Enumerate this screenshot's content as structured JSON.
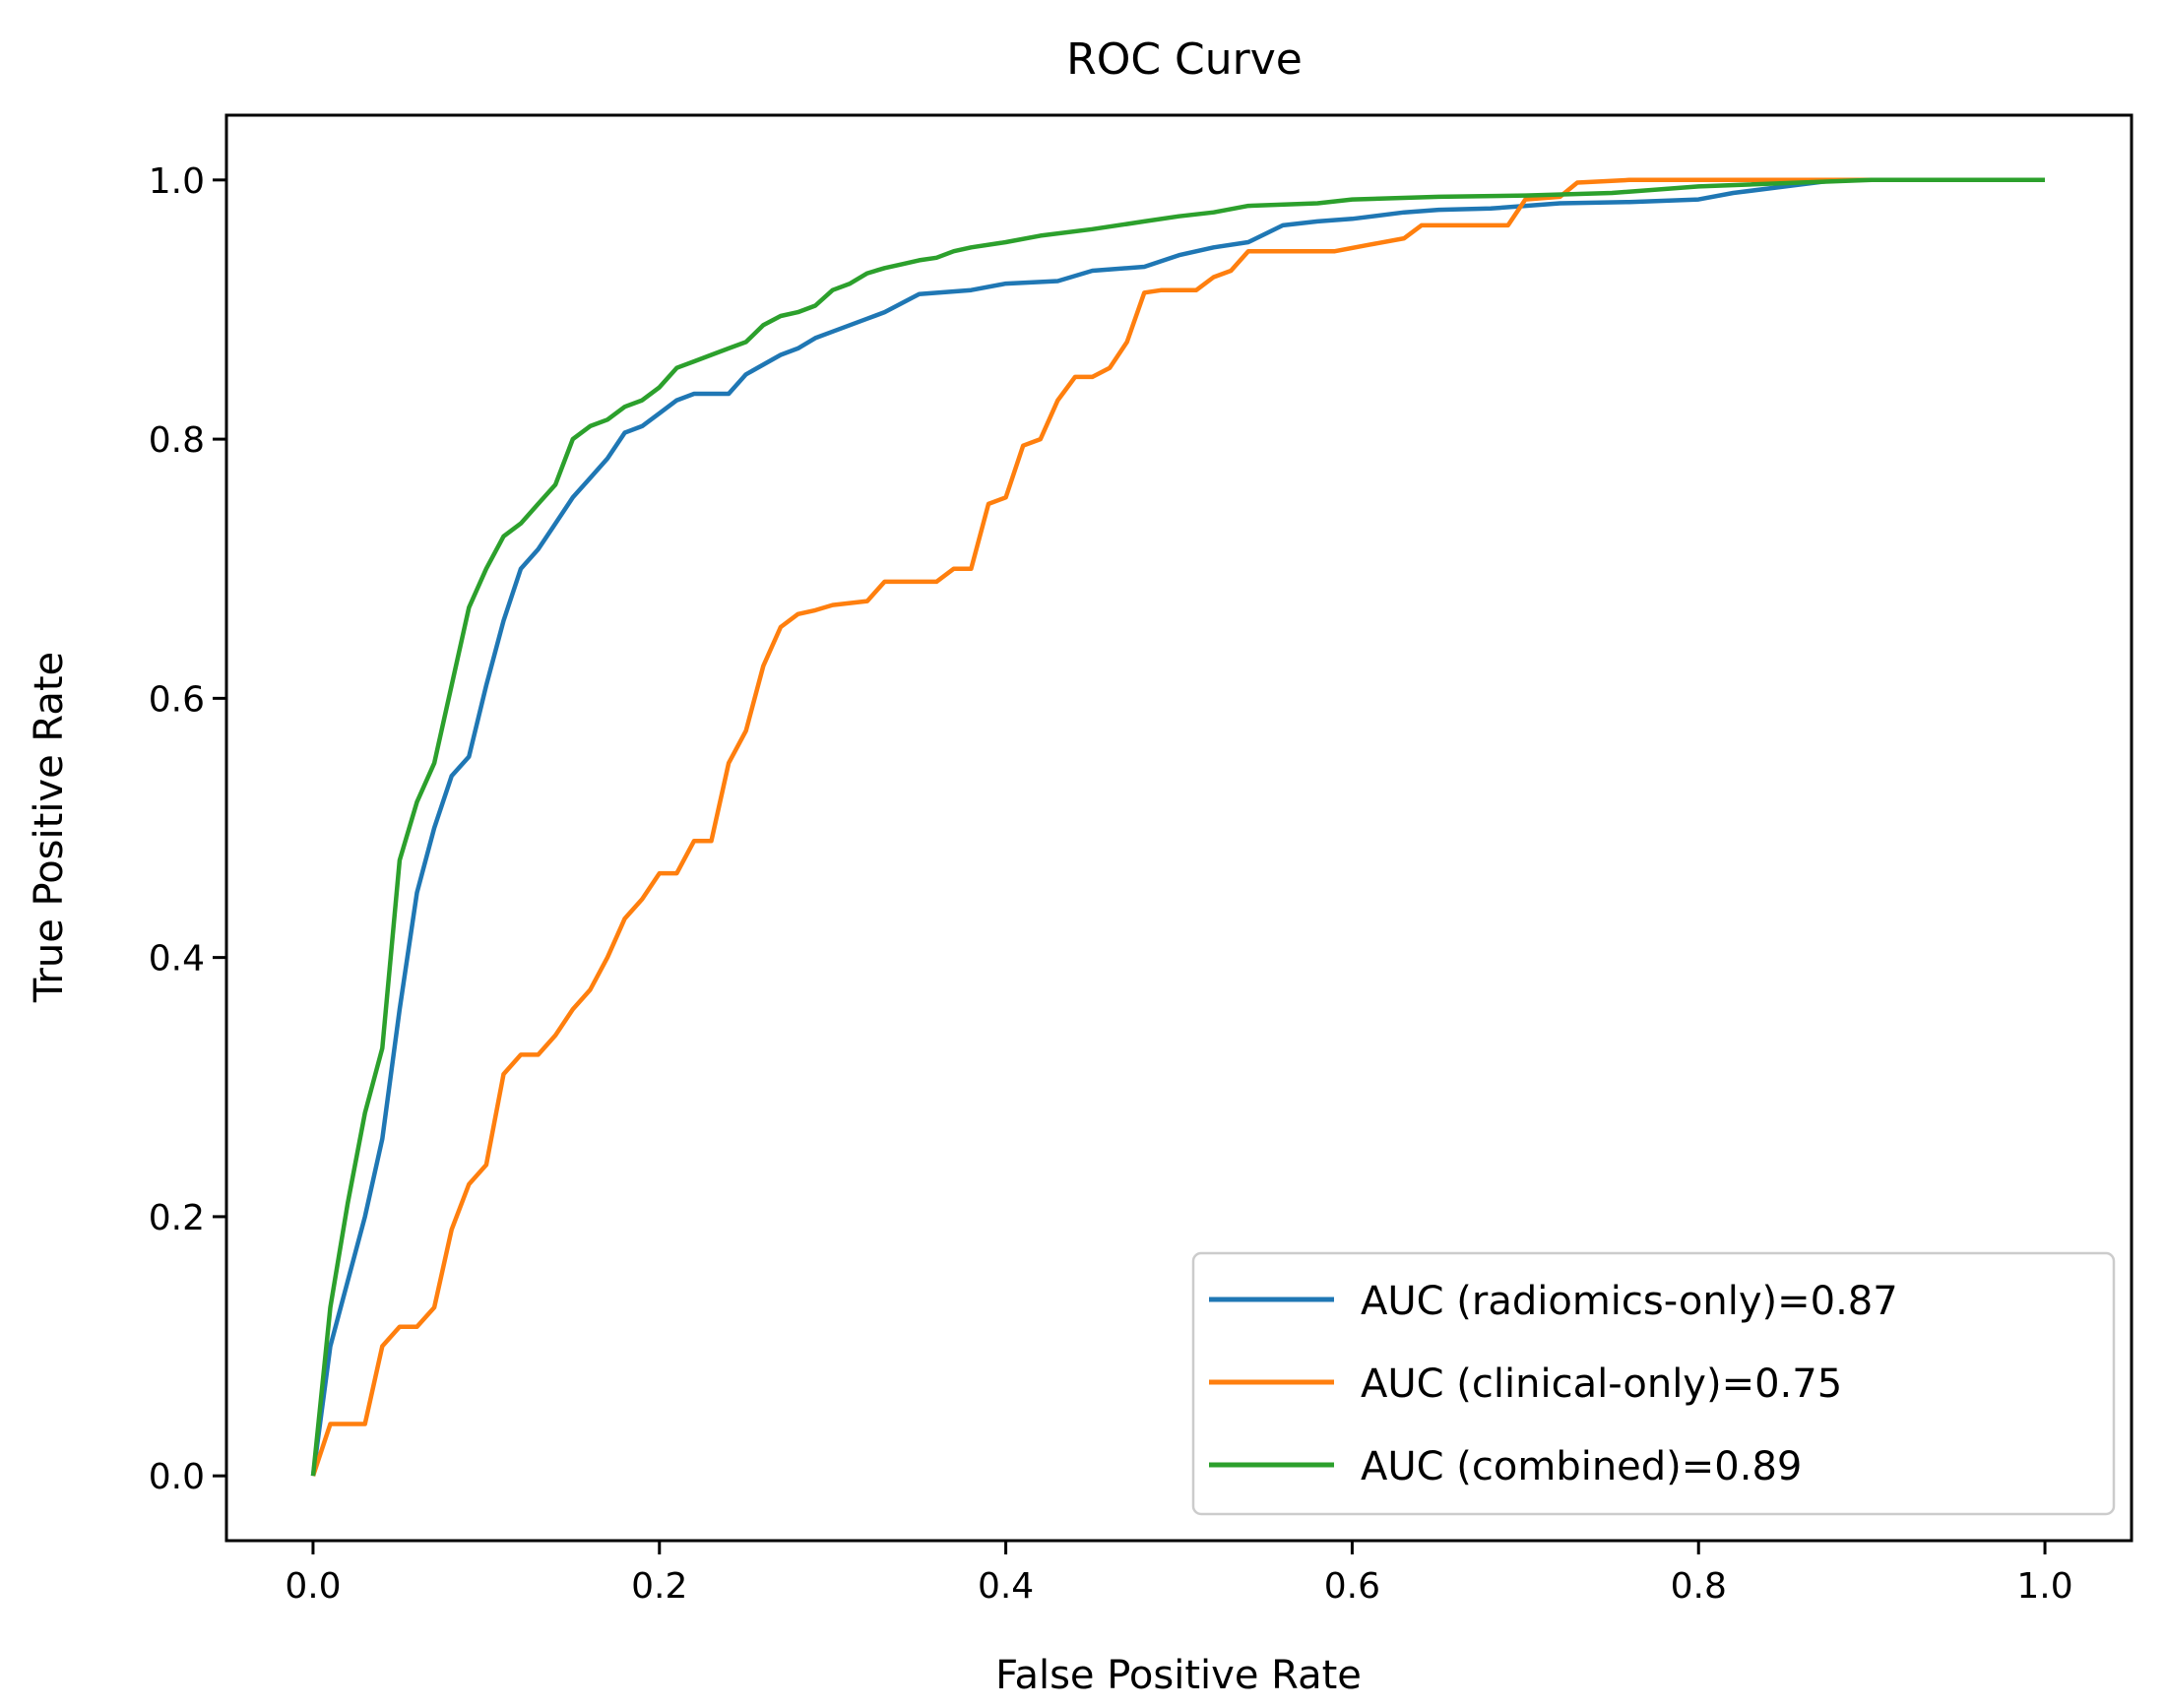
{
  "chart_data": {
    "type": "line",
    "title": "ROC Curve",
    "xlabel": "False Positive Rate",
    "ylabel": "True Positive Rate",
    "xlim": [
      -0.05,
      1.05
    ],
    "ylim": [
      -0.05,
      1.05
    ],
    "xticks": [
      0.0,
      0.2,
      0.4,
      0.6,
      0.8,
      1.0
    ],
    "yticks": [
      0.0,
      0.2,
      0.4,
      0.6,
      0.8,
      1.0
    ],
    "xtick_labels": [
      "0.0",
      "0.2",
      "0.4",
      "0.6",
      "0.8",
      "1.0"
    ],
    "ytick_labels": [
      "0.0",
      "0.2",
      "0.4",
      "0.6",
      "0.8",
      "1.0"
    ],
    "grid": false,
    "legend_position": "lower-right",
    "series": [
      {
        "name": "AUC (radiomics-only)=0.87",
        "color": "#1f77b4",
        "points": [
          [
            0,
            0
          ],
          [
            0.01,
            0.1
          ],
          [
            0.02,
            0.15
          ],
          [
            0.03,
            0.2
          ],
          [
            0.04,
            0.26
          ],
          [
            0.05,
            0.36
          ],
          [
            0.06,
            0.45
          ],
          [
            0.07,
            0.5
          ],
          [
            0.08,
            0.54
          ],
          [
            0.09,
            0.555
          ],
          [
            0.1,
            0.61
          ],
          [
            0.11,
            0.66
          ],
          [
            0.12,
            0.7
          ],
          [
            0.13,
            0.715
          ],
          [
            0.14,
            0.735
          ],
          [
            0.15,
            0.755
          ],
          [
            0.16,
            0.77
          ],
          [
            0.17,
            0.785
          ],
          [
            0.18,
            0.805
          ],
          [
            0.19,
            0.81
          ],
          [
            0.2,
            0.82
          ],
          [
            0.21,
            0.83
          ],
          [
            0.22,
            0.835
          ],
          [
            0.24,
            0.835
          ],
          [
            0.25,
            0.85
          ],
          [
            0.27,
            0.865
          ],
          [
            0.28,
            0.87
          ],
          [
            0.29,
            0.878
          ],
          [
            0.3,
            0.883
          ],
          [
            0.32,
            0.893
          ],
          [
            0.33,
            0.898
          ],
          [
            0.35,
            0.912
          ],
          [
            0.38,
            0.915
          ],
          [
            0.4,
            0.92
          ],
          [
            0.43,
            0.922
          ],
          [
            0.45,
            0.93
          ],
          [
            0.48,
            0.933
          ],
          [
            0.5,
            0.942
          ],
          [
            0.52,
            0.948
          ],
          [
            0.54,
            0.952
          ],
          [
            0.56,
            0.965
          ],
          [
            0.58,
            0.968
          ],
          [
            0.6,
            0.97
          ],
          [
            0.63,
            0.975
          ],
          [
            0.65,
            0.977
          ],
          [
            0.68,
            0.978
          ],
          [
            0.7,
            0.98
          ],
          [
            0.72,
            0.982
          ],
          [
            0.76,
            0.983
          ],
          [
            0.8,
            0.985
          ],
          [
            0.82,
            0.99
          ],
          [
            0.85,
            0.995
          ],
          [
            0.88,
            1.0
          ],
          [
            1.0,
            1.0
          ]
        ]
      },
      {
        "name": "AUC (clinical-only)=0.75",
        "color": "#ff7f0e",
        "points": [
          [
            0,
            0
          ],
          [
            0.01,
            0.04
          ],
          [
            0.02,
            0.04
          ],
          [
            0.03,
            0.04
          ],
          [
            0.04,
            0.1
          ],
          [
            0.05,
            0.115
          ],
          [
            0.06,
            0.115
          ],
          [
            0.07,
            0.13
          ],
          [
            0.08,
            0.19
          ],
          [
            0.09,
            0.225
          ],
          [
            0.1,
            0.24
          ],
          [
            0.11,
            0.31
          ],
          [
            0.12,
            0.325
          ],
          [
            0.13,
            0.325
          ],
          [
            0.14,
            0.34
          ],
          [
            0.15,
            0.36
          ],
          [
            0.16,
            0.375
          ],
          [
            0.17,
            0.4
          ],
          [
            0.18,
            0.43
          ],
          [
            0.19,
            0.445
          ],
          [
            0.2,
            0.465
          ],
          [
            0.21,
            0.465
          ],
          [
            0.22,
            0.49
          ],
          [
            0.23,
            0.49
          ],
          [
            0.24,
            0.55
          ],
          [
            0.25,
            0.575
          ],
          [
            0.26,
            0.625
          ],
          [
            0.27,
            0.655
          ],
          [
            0.28,
            0.665
          ],
          [
            0.29,
            0.668
          ],
          [
            0.3,
            0.672
          ],
          [
            0.32,
            0.675
          ],
          [
            0.33,
            0.69
          ],
          [
            0.36,
            0.69
          ],
          [
            0.37,
            0.7
          ],
          [
            0.38,
            0.7
          ],
          [
            0.39,
            0.75
          ],
          [
            0.4,
            0.755
          ],
          [
            0.41,
            0.795
          ],
          [
            0.42,
            0.8
          ],
          [
            0.43,
            0.83
          ],
          [
            0.44,
            0.848
          ],
          [
            0.45,
            0.848
          ],
          [
            0.46,
            0.855
          ],
          [
            0.47,
            0.875
          ],
          [
            0.48,
            0.913
          ],
          [
            0.49,
            0.915
          ],
          [
            0.51,
            0.915
          ],
          [
            0.52,
            0.925
          ],
          [
            0.53,
            0.93
          ],
          [
            0.54,
            0.945
          ],
          [
            0.59,
            0.945
          ],
          [
            0.61,
            0.95
          ],
          [
            0.63,
            0.955
          ],
          [
            0.64,
            0.965
          ],
          [
            0.69,
            0.965
          ],
          [
            0.7,
            0.985
          ],
          [
            0.72,
            0.987
          ],
          [
            0.73,
            0.998
          ],
          [
            0.76,
            1.0
          ],
          [
            1.0,
            1.0
          ]
        ]
      },
      {
        "name": "AUC (combined)=0.89",
        "color": "#2ca02c",
        "points": [
          [
            0,
            0
          ],
          [
            0.01,
            0.13
          ],
          [
            0.02,
            0.21
          ],
          [
            0.03,
            0.28
          ],
          [
            0.04,
            0.33
          ],
          [
            0.05,
            0.475
          ],
          [
            0.06,
            0.52
          ],
          [
            0.07,
            0.55
          ],
          [
            0.08,
            0.61
          ],
          [
            0.09,
            0.67
          ],
          [
            0.1,
            0.7
          ],
          [
            0.11,
            0.725
          ],
          [
            0.12,
            0.735
          ],
          [
            0.13,
            0.75
          ],
          [
            0.14,
            0.765
          ],
          [
            0.15,
            0.8
          ],
          [
            0.16,
            0.81
          ],
          [
            0.17,
            0.815
          ],
          [
            0.18,
            0.825
          ],
          [
            0.19,
            0.83
          ],
          [
            0.2,
            0.84
          ],
          [
            0.21,
            0.855
          ],
          [
            0.22,
            0.86
          ],
          [
            0.23,
            0.865
          ],
          [
            0.24,
            0.87
          ],
          [
            0.25,
            0.875
          ],
          [
            0.26,
            0.888
          ],
          [
            0.27,
            0.895
          ],
          [
            0.28,
            0.898
          ],
          [
            0.29,
            0.903
          ],
          [
            0.3,
            0.915
          ],
          [
            0.31,
            0.92
          ],
          [
            0.32,
            0.928
          ],
          [
            0.33,
            0.932
          ],
          [
            0.34,
            0.935
          ],
          [
            0.35,
            0.938
          ],
          [
            0.36,
            0.94
          ],
          [
            0.37,
            0.945
          ],
          [
            0.38,
            0.948
          ],
          [
            0.4,
            0.952
          ],
          [
            0.42,
            0.957
          ],
          [
            0.45,
            0.962
          ],
          [
            0.48,
            0.968
          ],
          [
            0.5,
            0.972
          ],
          [
            0.52,
            0.975
          ],
          [
            0.54,
            0.98
          ],
          [
            0.58,
            0.982
          ],
          [
            0.6,
            0.985
          ],
          [
            0.65,
            0.987
          ],
          [
            0.7,
            0.988
          ],
          [
            0.75,
            0.99
          ],
          [
            0.8,
            0.995
          ],
          [
            0.9,
            1.0
          ],
          [
            1.0,
            1.0
          ]
        ]
      }
    ]
  }
}
